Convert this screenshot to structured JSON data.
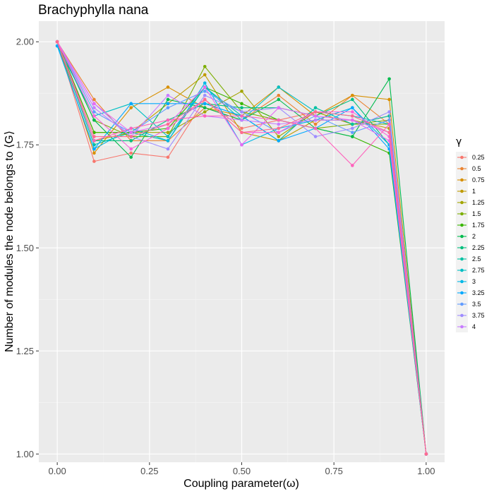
{
  "chart_data": {
    "type": "line",
    "title": "Brachyphylla nana",
    "xlabel": "Coupling parameter(ω)",
    "ylabel": "Number of modules the node belongs to ⟨G⟩",
    "xlim": [
      -0.05,
      1.05
    ],
    "ylim": [
      0.98,
      2.05
    ],
    "xticks": [
      0.0,
      0.25,
      0.5,
      0.75,
      1.0
    ],
    "xtick_labels": [
      "0.00",
      "0.25",
      "0.50",
      "0.75",
      "1.00"
    ],
    "yticks": [
      1.0,
      1.25,
      1.5,
      1.75,
      2.0
    ],
    "ytick_labels": [
      "1.00",
      "1.25",
      "1.50",
      "1.75",
      "2.00"
    ],
    "grid": true,
    "legend_title": "γ",
    "legend_position": "right",
    "x": [
      0.0,
      0.1,
      0.2,
      0.3,
      0.4,
      0.5,
      0.6,
      0.7,
      0.8,
      0.9,
      1.0
    ],
    "series": [
      {
        "name": "0.25",
        "color": "#F8766D",
        "values": [
          2.0,
          1.71,
          1.73,
          1.72,
          1.86,
          1.79,
          1.81,
          1.83,
          1.8,
          1.82,
          1.0
        ]
      },
      {
        "name": "0.5",
        "color": "#EA8331",
        "values": [
          2.0,
          1.86,
          1.76,
          1.76,
          1.84,
          1.81,
          1.87,
          1.8,
          1.87,
          1.8,
          1.0
        ]
      },
      {
        "name": "0.75",
        "color": "#D89000",
        "values": [
          2.0,
          1.73,
          1.84,
          1.89,
          1.84,
          1.82,
          1.89,
          1.82,
          1.87,
          1.86,
          1.0
        ]
      },
      {
        "name": "1",
        "color": "#C09B00",
        "values": [
          2.0,
          1.76,
          1.78,
          1.85,
          1.92,
          1.78,
          1.76,
          1.81,
          1.81,
          1.79,
          1.0
        ]
      },
      {
        "name": "1.25",
        "color": "#A3A500",
        "values": [
          2.0,
          1.78,
          1.78,
          1.78,
          1.83,
          1.88,
          1.77,
          1.83,
          1.8,
          1.81,
          1.0
        ]
      },
      {
        "name": "1.5",
        "color": "#7CAE00",
        "values": [
          2.0,
          1.81,
          1.77,
          1.77,
          1.94,
          1.83,
          1.81,
          1.79,
          1.8,
          1.8,
          1.0
        ]
      },
      {
        "name": "1.75",
        "color": "#39B600",
        "values": [
          2.0,
          1.78,
          1.78,
          1.79,
          1.89,
          1.85,
          1.81,
          1.79,
          1.77,
          1.73,
          1.0
        ]
      },
      {
        "name": "2",
        "color": "#00BB4E",
        "values": [
          2.0,
          1.81,
          1.72,
          1.86,
          1.84,
          1.81,
          1.86,
          1.79,
          1.77,
          1.91,
          1.0
        ]
      },
      {
        "name": "2.25",
        "color": "#00BF7D",
        "values": [
          2.0,
          1.76,
          1.76,
          1.81,
          1.85,
          1.84,
          1.84,
          1.82,
          1.86,
          1.75,
          1.0
        ]
      },
      {
        "name": "2.5",
        "color": "#00C1A3",
        "values": [
          2.0,
          1.75,
          1.78,
          1.76,
          1.89,
          1.82,
          1.76,
          1.84,
          1.8,
          1.82,
          1.0
        ]
      },
      {
        "name": "2.75",
        "color": "#00BFC4",
        "values": [
          1.99,
          1.82,
          1.85,
          1.77,
          1.89,
          1.81,
          1.89,
          1.83,
          1.82,
          1.8,
          1.0
        ]
      },
      {
        "name": "3",
        "color": "#00B8E7",
        "values": [
          1.99,
          1.74,
          1.79,
          1.76,
          1.9,
          1.75,
          1.79,
          1.81,
          1.84,
          1.75,
          1.0
        ]
      },
      {
        "name": "3.25",
        "color": "#00A9FF",
        "values": [
          1.99,
          1.74,
          1.85,
          1.85,
          1.85,
          1.82,
          1.76,
          1.79,
          1.84,
          1.74,
          1.0
        ]
      },
      {
        "name": "3.5",
        "color": "#619CFF",
        "values": [
          2.0,
          1.83,
          1.78,
          1.84,
          1.88,
          1.83,
          1.78,
          1.82,
          1.78,
          1.81,
          1.0
        ]
      },
      {
        "name": "3.75",
        "color": "#9F8CFF",
        "values": [
          2.0,
          1.85,
          1.77,
          1.74,
          1.87,
          1.83,
          1.84,
          1.77,
          1.79,
          1.83,
          1.0
        ]
      },
      {
        "name": "4",
        "color": "#C77CFF",
        "values": [
          2.0,
          1.84,
          1.77,
          1.87,
          1.82,
          1.81,
          1.8,
          1.81,
          1.81,
          1.78,
          1.0
        ]
      },
      {
        "name": "",
        "color": "#E76BF3",
        "values": [
          2.0,
          1.85,
          1.78,
          1.8,
          1.89,
          1.75,
          1.84,
          1.82,
          1.81,
          1.76,
          1.0
        ]
      },
      {
        "name": "",
        "color": "#FA62DB",
        "values": [
          2.0,
          1.82,
          1.74,
          1.79,
          1.86,
          1.78,
          1.78,
          1.83,
          1.83,
          1.77,
          1.0
        ]
      },
      {
        "name": "",
        "color": "#FF62BC",
        "values": [
          2.0,
          1.76,
          1.79,
          1.81,
          1.82,
          1.82,
          1.81,
          1.79,
          1.7,
          1.8,
          1.0
        ]
      },
      {
        "name": "",
        "color": "#FF6C91",
        "values": [
          2.0,
          1.77,
          1.77,
          1.8,
          1.86,
          1.78,
          1.79,
          1.83,
          1.82,
          1.78,
          1.0
        ]
      }
    ]
  }
}
